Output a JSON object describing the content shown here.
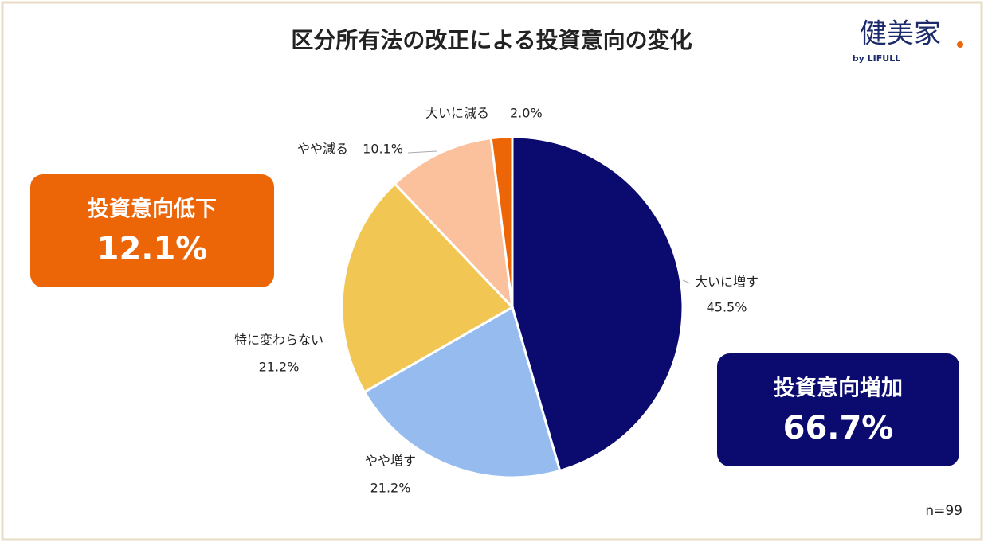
{
  "chart_data": {
    "type": "pie",
    "title": "区分所有法の改正による投資意向の変化",
    "categories": [
      "大いに増す",
      "やや増す",
      "特に変わらない",
      "やや減る",
      "大いに減る"
    ],
    "values": [
      45.5,
      21.2,
      21.2,
      10.1,
      2.0
    ],
    "value_labels": [
      "45.5%",
      "21.2%",
      "21.2%",
      "10.1%",
      "2.0%"
    ],
    "colors": [
      "#0b0b6f",
      "#96bcef",
      "#f1c652",
      "#fbc09c",
      "#ec6608"
    ],
    "annotations": [
      {
        "label": "投資意向低下",
        "value": 12.1,
        "value_label": "12.1%",
        "color": "#ec6608"
      },
      {
        "label": "投資意向増加",
        "value": 66.7,
        "value_label": "66.7%",
        "color": "#0b0b6f"
      }
    ],
    "note": "n=99"
  },
  "brand": {
    "name": "健美家",
    "sub": "by LIFULL"
  }
}
